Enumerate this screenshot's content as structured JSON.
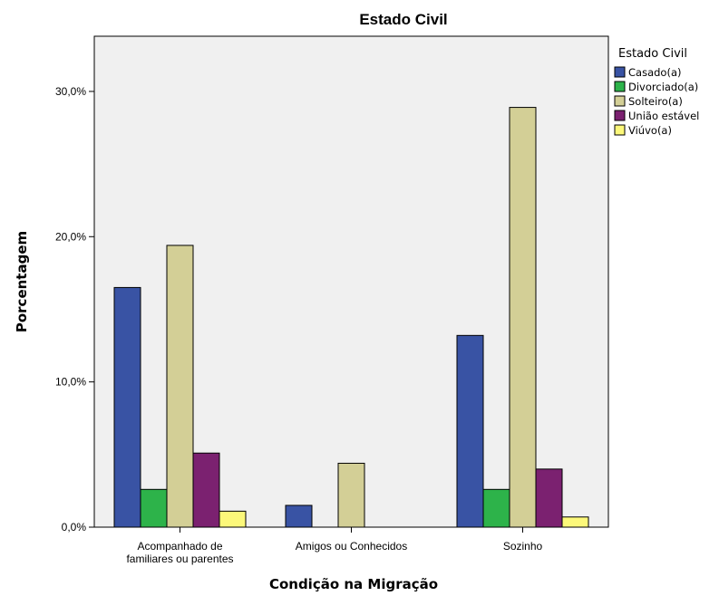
{
  "chart_data": {
    "type": "bar",
    "title": "Estado Civil",
    "xlabel": "Condição na Migração",
    "ylabel": "Porcentagem",
    "ylim": [
      0,
      33.8
    ],
    "yticks": [
      0,
      10,
      20,
      30
    ],
    "ytick_labels": [
      "0,0%",
      "10,0%",
      "20,0%",
      "30,0%"
    ],
    "grid": false,
    "categories": [
      [
        "Acompanhado de",
        "familiares ou parentes"
      ],
      [
        "Amigos ou Conhecidos"
      ],
      [
        "Sozinho"
      ]
    ],
    "legend": {
      "title": "Estado Civil",
      "position": "right"
    },
    "series": [
      {
        "name": "Casado(a)",
        "color": "#3953A4",
        "values": [
          16.5,
          1.5,
          13.2
        ]
      },
      {
        "name": "Divorciado(a)",
        "color": "#2DB34A",
        "values": [
          2.6,
          0.0,
          2.6
        ]
      },
      {
        "name": "Solteiro(a)",
        "color": "#D3CF96",
        "values": [
          19.4,
          4.4,
          28.9
        ]
      },
      {
        "name": "União estável",
        "color": "#7B2170",
        "values": [
          5.1,
          0.0,
          4.0
        ]
      },
      {
        "name": "Viúvo(a)",
        "color": "#FCF87A",
        "values": [
          1.1,
          0.0,
          0.7
        ]
      }
    ],
    "plot_background": "#F0F0F0"
  }
}
